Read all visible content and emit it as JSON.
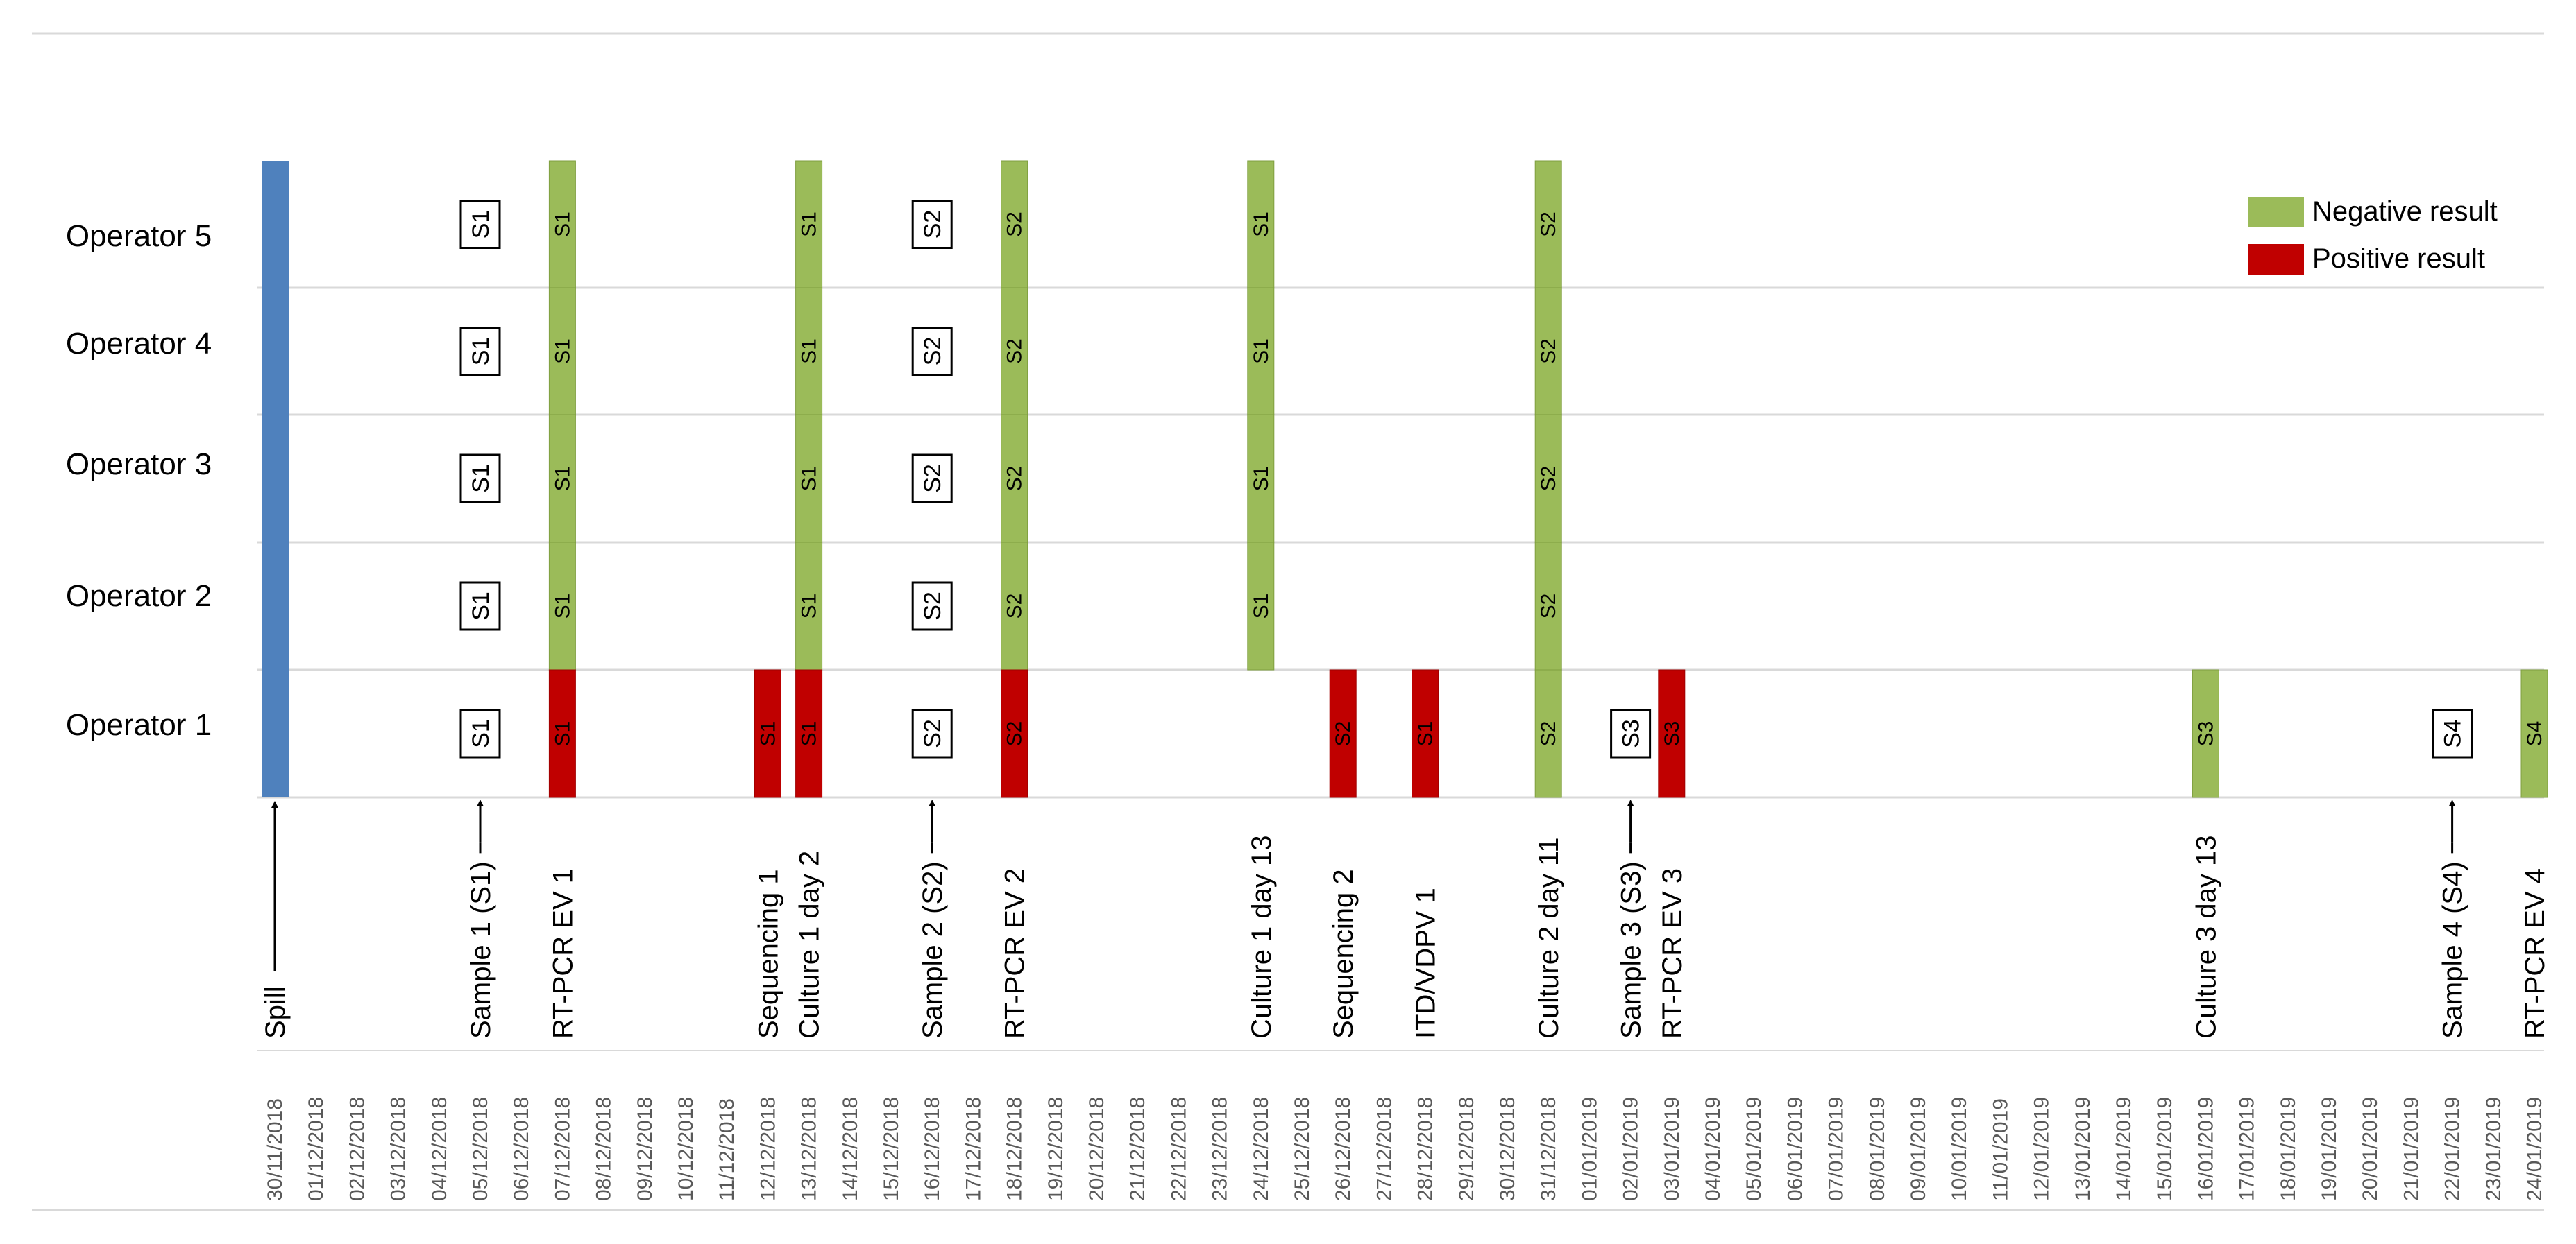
{
  "chart_data": {
    "type": "timeline",
    "rows": [
      "Operator 5",
      "Operator 4",
      "Operator 3",
      "Operator 2",
      "Operator 1"
    ],
    "dates": [
      "30/11/2018",
      "01/12/2018",
      "02/12/2018",
      "03/12/2018",
      "04/12/2018",
      "05/12/2018",
      "06/12/2018",
      "07/12/2018",
      "08/12/2018",
      "09/12/2018",
      "10/12/2018",
      "11/12/2018",
      "12/12/2018",
      "13/12/2018",
      "14/12/2018",
      "15/12/2018",
      "16/12/2018",
      "17/12/2018",
      "18/12/2018",
      "19/12/2018",
      "20/12/2018",
      "21/12/2018",
      "22/12/2018",
      "23/12/2018",
      "24/12/2018",
      "25/12/2018",
      "26/12/2018",
      "27/12/2018",
      "28/12/2018",
      "29/12/2018",
      "30/12/2018",
      "31/12/2018",
      "01/01/2019",
      "02/01/2019",
      "03/01/2019",
      "04/01/2019",
      "05/01/2019",
      "06/01/2019",
      "07/01/2019",
      "08/01/2019",
      "09/01/2019",
      "10/01/2019",
      "11/01/2019",
      "12/01/2019",
      "13/01/2019",
      "14/01/2019",
      "15/01/2019",
      "16/01/2019",
      "17/01/2019",
      "18/01/2019",
      "19/01/2019",
      "20/01/2019",
      "21/01/2019",
      "22/01/2019",
      "23/01/2019",
      "24/01/2019"
    ],
    "events": [
      {
        "label": "Spill",
        "date": "30/11/2018",
        "arrow": "up"
      },
      {
        "label": "Sample 1 (S1)",
        "date": "05/12/2018",
        "arrow": "right-up"
      },
      {
        "label": "RT-PCR EV 1",
        "date": "07/12/2018"
      },
      {
        "label": "Sequencing 1",
        "date": "12/12/2018"
      },
      {
        "label": "Culture 1 day 2",
        "date": "13/12/2018"
      },
      {
        "label": "Sample 2 (S2)",
        "date": "16/12/2018",
        "arrow": "right-up"
      },
      {
        "label": "RT-PCR EV 2",
        "date": "18/12/2018"
      },
      {
        "label": "Culture 1 day 13",
        "date": "24/12/2018"
      },
      {
        "label": "Sequencing 2",
        "date": "26/12/2018"
      },
      {
        "label": "ITD/VDPV 1",
        "date": "28/12/2018"
      },
      {
        "label": "Culture 2 day 11",
        "date": "31/12/2018"
      },
      {
        "label": "Sample 3 (S3)",
        "date": "02/01/2019",
        "arrow": "right-up"
      },
      {
        "label": "RT-PCR EV 3",
        "date": "03/01/2019"
      },
      {
        "label": "Culture 3 day 13",
        "date": "16/01/2019"
      },
      {
        "label": "Sample 4 (S4)",
        "date": "22/01/2019",
        "arrow": "right-up"
      },
      {
        "label": "RT-PCR EV 4",
        "date": "24/01/2019"
      }
    ],
    "spill": {
      "date": "30/11/2018",
      "rows": [
        "Operator 5",
        "Operator 4",
        "Operator 3",
        "Operator 2",
        "Operator 1"
      ]
    },
    "results": [
      {
        "date": "07/12/2018",
        "label": "S1",
        "rows": {
          "Operator 5": "neg",
          "Operator 4": "neg",
          "Operator 3": "neg",
          "Operator 2": "neg",
          "Operator 1": "pos"
        }
      },
      {
        "date": "12/12/2018",
        "label": "S1",
        "rows": {
          "Operator 1": "pos"
        }
      },
      {
        "date": "13/12/2018",
        "label": "S1",
        "rows": {
          "Operator 5": "neg",
          "Operator 4": "neg",
          "Operator 3": "neg",
          "Operator 2": "neg",
          "Operator 1": "pos"
        }
      },
      {
        "date": "18/12/2018",
        "label": "S2",
        "rows": {
          "Operator 5": "neg",
          "Operator 4": "neg",
          "Operator 3": "neg",
          "Operator 2": "neg",
          "Operator 1": "pos"
        }
      },
      {
        "date": "24/12/2018",
        "label": "S1",
        "rows": {
          "Operator 5": "neg",
          "Operator 4": "neg",
          "Operator 3": "neg",
          "Operator 2": "neg"
        }
      },
      {
        "date": "26/12/2018",
        "label": "S2",
        "rows": {
          "Operator 1": "pos"
        }
      },
      {
        "date": "28/12/2018",
        "label": "S1",
        "rows": {
          "Operator 1": "pos"
        }
      },
      {
        "date": "31/12/2018",
        "label": "S2",
        "rows": {
          "Operator 5": "neg",
          "Operator 4": "neg",
          "Operator 3": "neg",
          "Operator 2": "neg",
          "Operator 1": "neg"
        }
      },
      {
        "date": "03/01/2019",
        "label": "S3",
        "rows": {
          "Operator 1": "pos"
        }
      },
      {
        "date": "16/01/2019",
        "label": "S3",
        "rows": {
          "Operator 1": "neg"
        }
      },
      {
        "date": "24/01/2019",
        "label": "S4",
        "rows": {
          "Operator 1": "neg"
        }
      }
    ],
    "samples": [
      {
        "date": "05/12/2018",
        "label": "S1",
        "rows": [
          "Operator 5",
          "Operator 4",
          "Operator 3",
          "Operator 2",
          "Operator 1"
        ]
      },
      {
        "date": "16/12/2018",
        "label": "S2",
        "rows": [
          "Operator 5",
          "Operator 4",
          "Operator 3",
          "Operator 2",
          "Operator 1"
        ]
      },
      {
        "date": "02/01/2019",
        "label": "S3",
        "rows": [
          "Operator 1"
        ]
      },
      {
        "date": "22/01/2019",
        "label": "S4",
        "rows": [
          "Operator 1"
        ]
      }
    ],
    "legend": {
      "position": "top-right",
      "items": [
        {
          "label": "Negative result",
          "key": "neg"
        },
        {
          "label": "Positive result",
          "key": "pos"
        }
      ]
    },
    "colors": {
      "neg": "#9bbb59",
      "pos": "#c00000",
      "spill": "#4f81bd",
      "grid": "#d9d9d9"
    }
  }
}
